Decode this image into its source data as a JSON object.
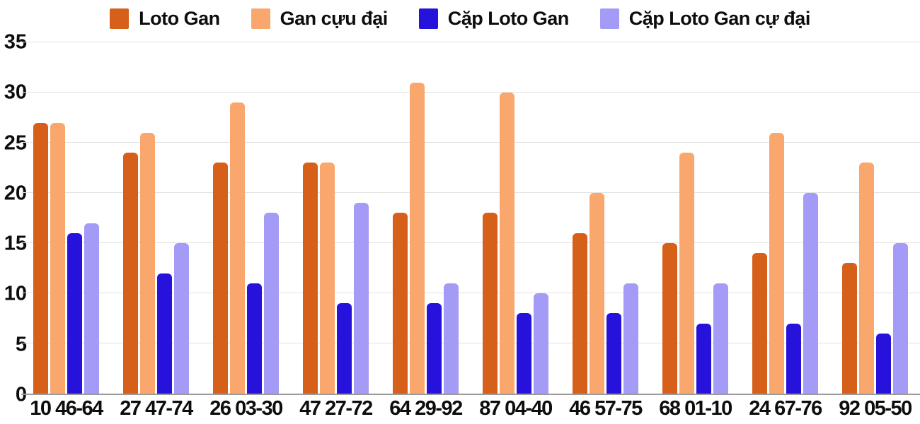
{
  "chart_data": {
    "type": "bar",
    "title": "",
    "xlabel": "",
    "ylabel": "",
    "categories": [
      "10 46-64",
      "27 47-74",
      "26 03-30",
      "47 27-72",
      "64 29-92",
      "87 04-40",
      "46 57-75",
      "68 01-10",
      "24 67-76",
      "92 05-50"
    ],
    "series": [
      {
        "name": "Loto Gan",
        "color": "#d6601a",
        "values": [
          27,
          24,
          23,
          23,
          18,
          18,
          16,
          15,
          14,
          13
        ]
      },
      {
        "name": "Gan cựu đại",
        "color": "#f9a76c",
        "values": [
          27,
          26,
          29,
          23,
          31,
          30,
          20,
          24,
          26,
          23
        ]
      },
      {
        "name": "Cặp Loto Gan",
        "color": "#2712dc",
        "values": [
          16,
          12,
          11,
          9,
          9,
          8,
          8,
          7,
          7,
          6
        ]
      },
      {
        "name": "Cặp Loto Gan cự đại",
        "color": "#a39bf5",
        "values": [
          17,
          15,
          18,
          19,
          11,
          10,
          11,
          11,
          20,
          15
        ]
      }
    ],
    "y_ticks": [
      0,
      5,
      10,
      15,
      20,
      25,
      30,
      35
    ],
    "ylim": [
      0,
      35
    ],
    "grid": true,
    "legend_position": "top",
    "background_color": "#ffffff",
    "gridline_color": "#e2e2e2",
    "axis_line_color": "#9a9a9a",
    "text_color": "#0d0d0d"
  }
}
